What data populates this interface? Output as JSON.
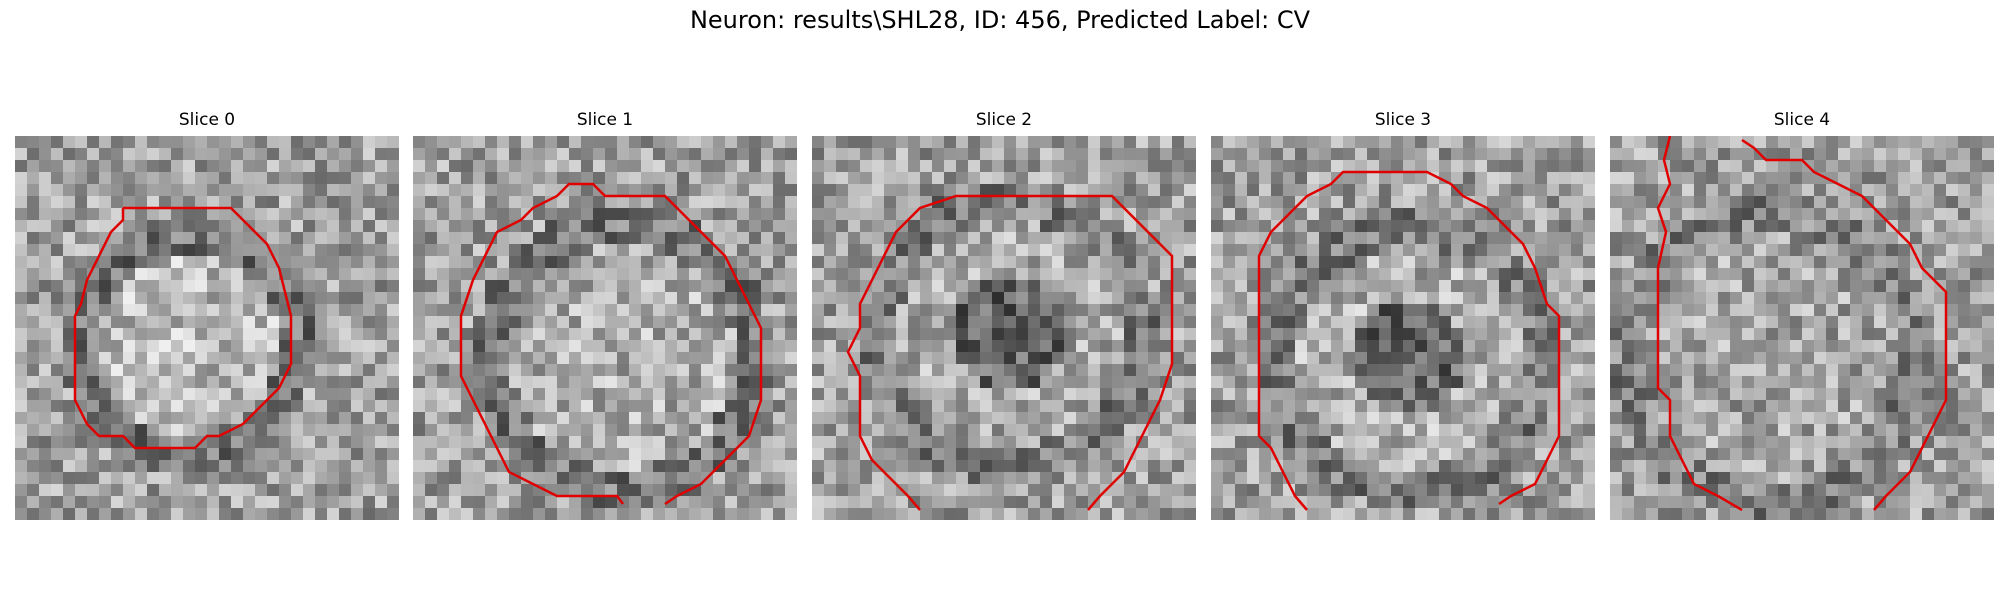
{
  "figure": {
    "title": "Neuron: results\\SHL28, ID: 456, Predicted Label: CV",
    "contour_color": "#e00000"
  },
  "slices": [
    {
      "title": "Slice 0"
    },
    {
      "title": "Slice 1"
    },
    {
      "title": "Slice 2"
    },
    {
      "title": "Slice 3"
    },
    {
      "title": "Slice 4"
    }
  ]
}
